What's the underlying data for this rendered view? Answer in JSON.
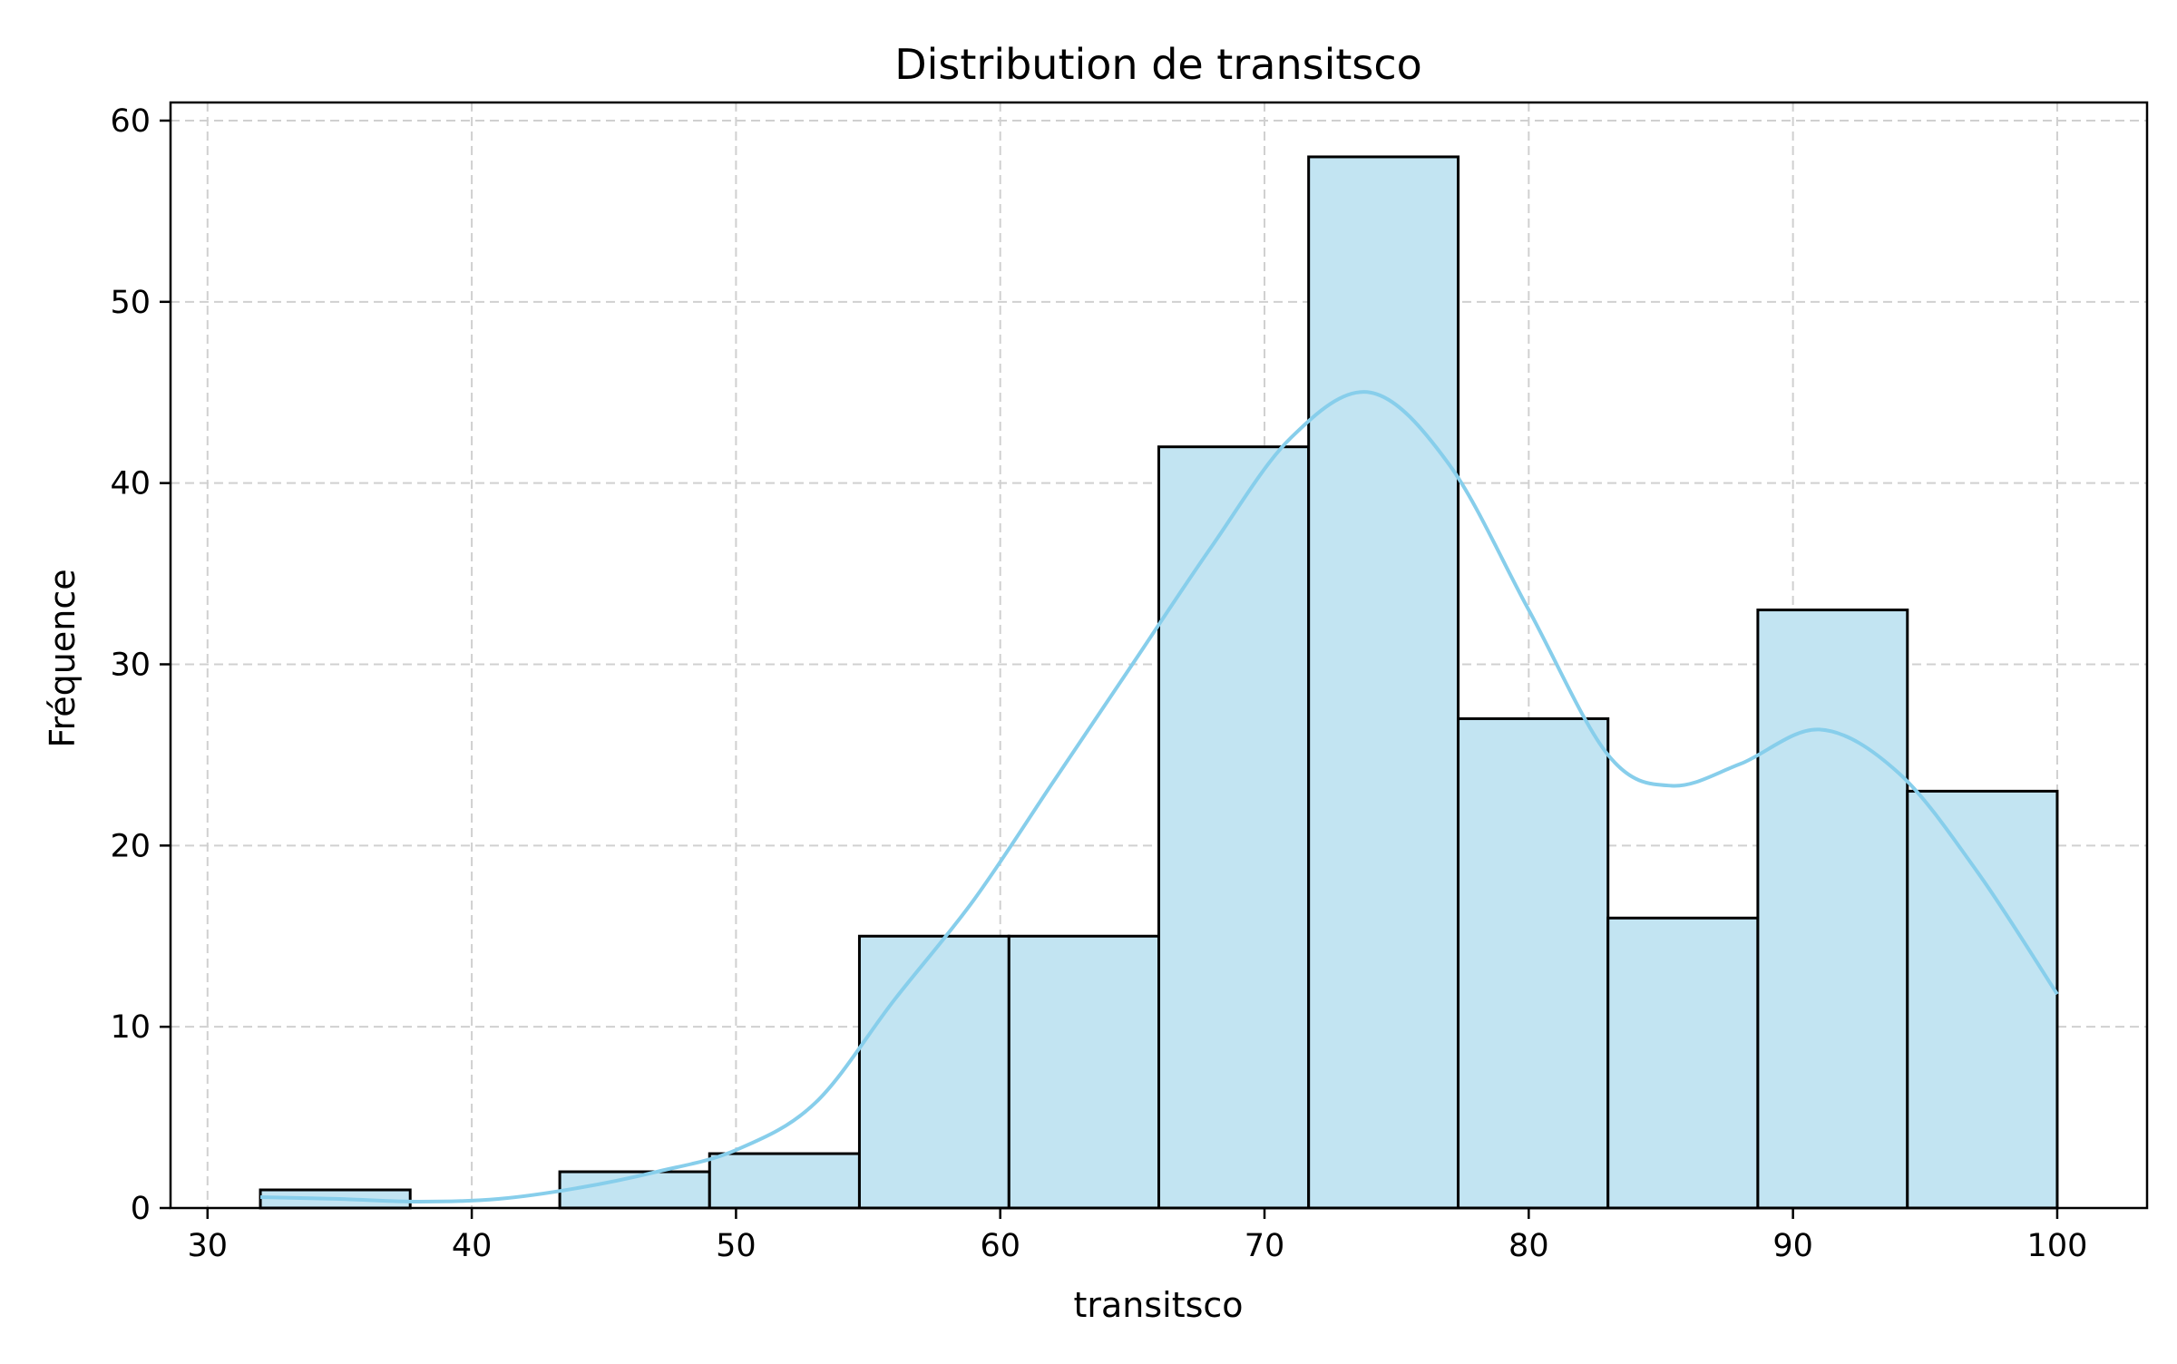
{
  "chart_data": {
    "type": "bar",
    "title": "Distribution de transitsco",
    "xlabel": "transitsco",
    "ylabel": "Fréquence",
    "xlim": [
      28.6,
      103.4
    ],
    "ylim": [
      0,
      61
    ],
    "x_ticks": [
      30,
      40,
      50,
      60,
      70,
      80,
      90,
      100
    ],
    "y_ticks": [
      0,
      10,
      20,
      30,
      40,
      50,
      60
    ],
    "grid": true,
    "legend": "none",
    "bins": [
      {
        "x0": 32.0,
        "x1": 37.67,
        "count": 1
      },
      {
        "x0": 37.67,
        "x1": 43.33,
        "count": 0
      },
      {
        "x0": 43.33,
        "x1": 49.0,
        "count": 2
      },
      {
        "x0": 49.0,
        "x1": 54.67,
        "count": 3
      },
      {
        "x0": 54.67,
        "x1": 60.33,
        "count": 15
      },
      {
        "x0": 60.33,
        "x1": 66.0,
        "count": 15
      },
      {
        "x0": 66.0,
        "x1": 71.67,
        "count": 42
      },
      {
        "x0": 71.67,
        "x1": 77.33,
        "count": 58
      },
      {
        "x0": 77.33,
        "x1": 83.0,
        "count": 27
      },
      {
        "x0": 83.0,
        "x1": 88.67,
        "count": 16
      },
      {
        "x0": 88.67,
        "x1": 94.33,
        "count": 33
      },
      {
        "x0": 94.33,
        "x1": 100.0,
        "count": 23
      }
    ],
    "kde": {
      "x": [
        32,
        35,
        38,
        41,
        44,
        47,
        50,
        53,
        56,
        59,
        62,
        65,
        68,
        71,
        74,
        77,
        80,
        83,
        85.4,
        88,
        91,
        94,
        97,
        100
      ],
      "y": [
        0.6,
        0.5,
        0.35,
        0.5,
        1.1,
        2.0,
        3.2,
        5.8,
        11.5,
        17.0,
        23.5,
        30.0,
        36.5,
        42.5,
        45.0,
        41.0,
        33.0,
        25.0,
        23.3,
        24.5,
        26.4,
        24.0,
        18.5,
        11.8
      ]
    },
    "colors": {
      "bar_fill": "#c2e4f2",
      "bar_edge": "#000000",
      "kde_line": "#87ceeb",
      "grid": "#d0d0d0"
    }
  }
}
